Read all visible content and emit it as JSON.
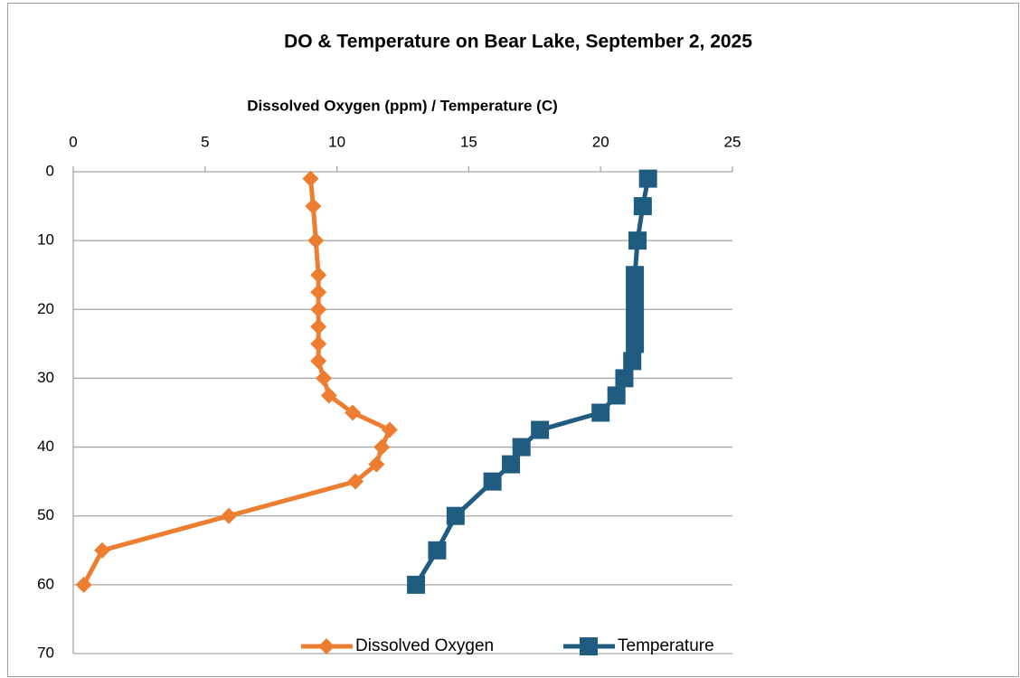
{
  "chart_data": {
    "type": "line",
    "title": "DO & Temperature on Bear Lake, September 2, 2025",
    "x_label": "Dissolved Oxygen (ppm) / Temperature (C)",
    "y": [
      1,
      5,
      10,
      15,
      17.5,
      20,
      22.5,
      25,
      27.5,
      30,
      32.5,
      35,
      37.5,
      40,
      42.5,
      45,
      50,
      55,
      60
    ],
    "series": [
      {
        "name": "Dissolved Oxygen",
        "color": "#ed7d31",
        "marker": "diamond",
        "values": [
          9.0,
          9.1,
          9.2,
          9.3,
          9.3,
          9.3,
          9.3,
          9.3,
          9.3,
          9.5,
          9.7,
          10.6,
          12.0,
          11.7,
          11.5,
          10.7,
          5.9,
          1.1,
          0.4
        ]
      },
      {
        "name": "Temperature",
        "color": "#1f5c80",
        "marker": "square",
        "values": [
          21.8,
          21.6,
          21.4,
          21.3,
          21.3,
          21.3,
          21.3,
          21.3,
          21.2,
          20.9,
          20.6,
          20.0,
          17.7,
          17.0,
          16.6,
          15.9,
          14.5,
          13.8,
          13.0
        ]
      }
    ],
    "xlim": [
      0,
      25
    ],
    "xticks": [
      0,
      5,
      10,
      15,
      20,
      25
    ],
    "x_axis_position": "top",
    "ylim": [
      0,
      70
    ],
    "yticks": [
      0,
      10,
      20,
      30,
      40,
      50,
      60,
      70
    ],
    "y_inverted": true,
    "grid": true,
    "legend": "bottom"
  }
}
